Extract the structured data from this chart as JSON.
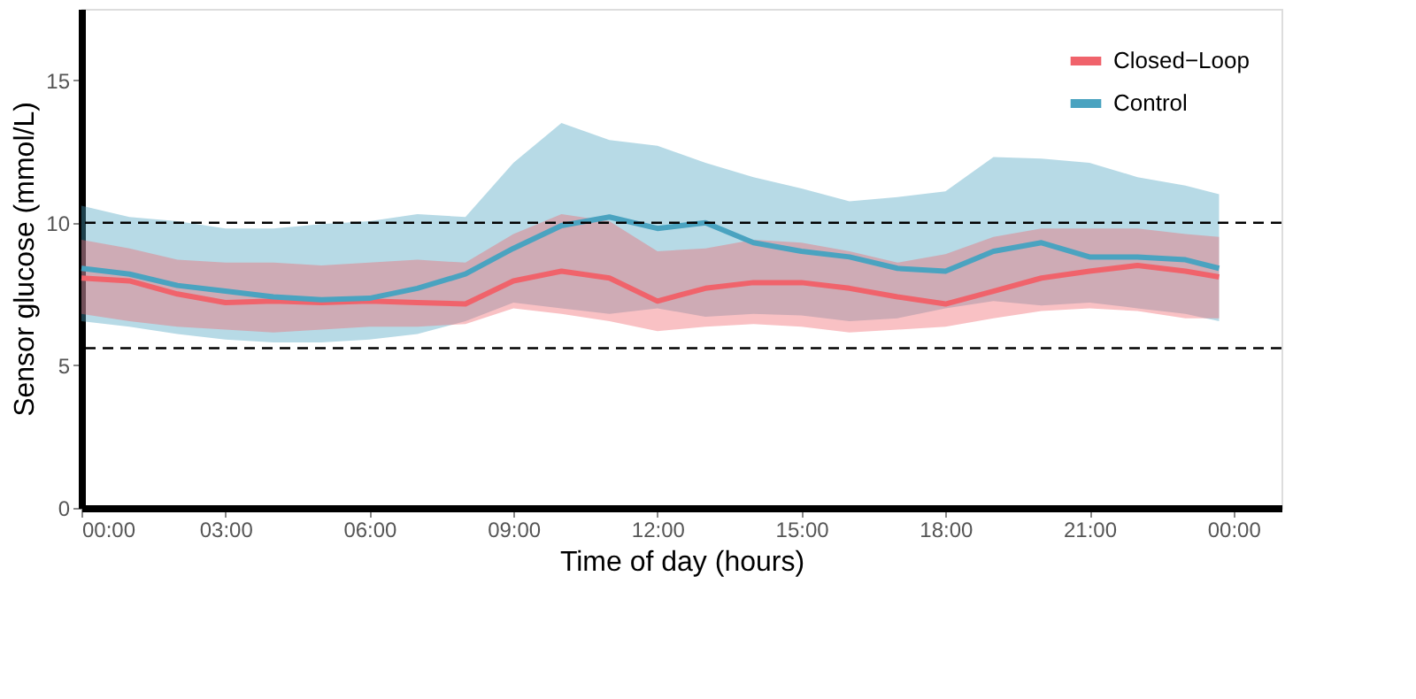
{
  "chart_data": {
    "type": "line",
    "xlabel": "Time of day (hours)",
    "ylabel": "Sensor glucose (mmol/L)",
    "x": [
      0,
      1,
      2,
      3,
      4,
      5,
      6,
      7,
      8,
      9,
      10,
      11,
      12,
      13,
      14,
      15,
      16,
      17,
      18,
      19,
      20,
      21,
      22,
      23,
      23.7
    ],
    "xlim": [
      0,
      25
    ],
    "xticks": [
      {
        "value": 0,
        "label": "00:00"
      },
      {
        "value": 3,
        "label": "03:00"
      },
      {
        "value": 6,
        "label": "06:00"
      },
      {
        "value": 9,
        "label": "09:00"
      },
      {
        "value": 12,
        "label": "12:00"
      },
      {
        "value": 15,
        "label": "15:00"
      },
      {
        "value": 18,
        "label": "18:00"
      },
      {
        "value": 21,
        "label": "21:00"
      },
      {
        "value": 24,
        "label": "00:00"
      }
    ],
    "ylim": [
      0,
      17.5
    ],
    "yticks": [
      0,
      5,
      10,
      15
    ],
    "series": [
      {
        "name": "Closed−Loop",
        "color": "#f0636b",
        "values": [
          8.06,
          7.96,
          7.5,
          7.2,
          7.25,
          7.2,
          7.25,
          7.2,
          7.15,
          7.96,
          8.3,
          8.06,
          7.25,
          7.7,
          7.9,
          7.9,
          7.7,
          7.4,
          7.15,
          7.6,
          8.06,
          8.3,
          8.5,
          8.3,
          8.1
        ],
        "lower": [
          6.8,
          6.55,
          6.35,
          6.25,
          6.15,
          6.25,
          6.35,
          6.35,
          6.45,
          7.0,
          6.8,
          6.55,
          6.2,
          6.35,
          6.45,
          6.35,
          6.15,
          6.25,
          6.35,
          6.65,
          6.9,
          7.0,
          6.9,
          6.65,
          6.65
        ],
        "upper": [
          9.4,
          9.1,
          8.7,
          8.6,
          8.6,
          8.5,
          8.6,
          8.7,
          8.6,
          9.6,
          10.3,
          10.05,
          9.0,
          9.1,
          9.4,
          9.3,
          9.0,
          8.6,
          8.9,
          9.5,
          9.8,
          9.8,
          9.8,
          9.6,
          9.5
        ]
      },
      {
        "name": "Control",
        "color": "#4aa3c0",
        "values": [
          8.4,
          8.2,
          7.8,
          7.6,
          7.4,
          7.3,
          7.35,
          7.7,
          8.2,
          9.1,
          9.9,
          10.2,
          9.8,
          10.0,
          9.3,
          9.0,
          8.8,
          8.4,
          8.3,
          9.0,
          9.3,
          8.8,
          8.8,
          8.7,
          8.4
        ],
        "lower": [
          6.55,
          6.35,
          6.1,
          5.9,
          5.8,
          5.8,
          5.9,
          6.1,
          6.55,
          7.2,
          7.0,
          6.8,
          7.0,
          6.7,
          6.8,
          6.75,
          6.55,
          6.65,
          7.0,
          7.25,
          7.1,
          7.2,
          7.0,
          6.8,
          6.55
        ],
        "upper": [
          10.6,
          10.2,
          10.05,
          9.8,
          9.8,
          9.95,
          10.05,
          10.3,
          10.2,
          12.1,
          13.5,
          12.9,
          12.7,
          12.1,
          11.6,
          11.2,
          10.75,
          10.9,
          11.1,
          12.3,
          12.25,
          12.1,
          11.6,
          11.3,
          11.0
        ]
      }
    ],
    "ref_lines": [
      {
        "axis": "y",
        "value": 10,
        "line_style": "dashed"
      },
      {
        "axis": "y",
        "value": 5.6,
        "line_style": "dashed"
      }
    ],
    "legend": "top right",
    "grid": false,
    "line_style": "solid",
    "marker": "none"
  }
}
